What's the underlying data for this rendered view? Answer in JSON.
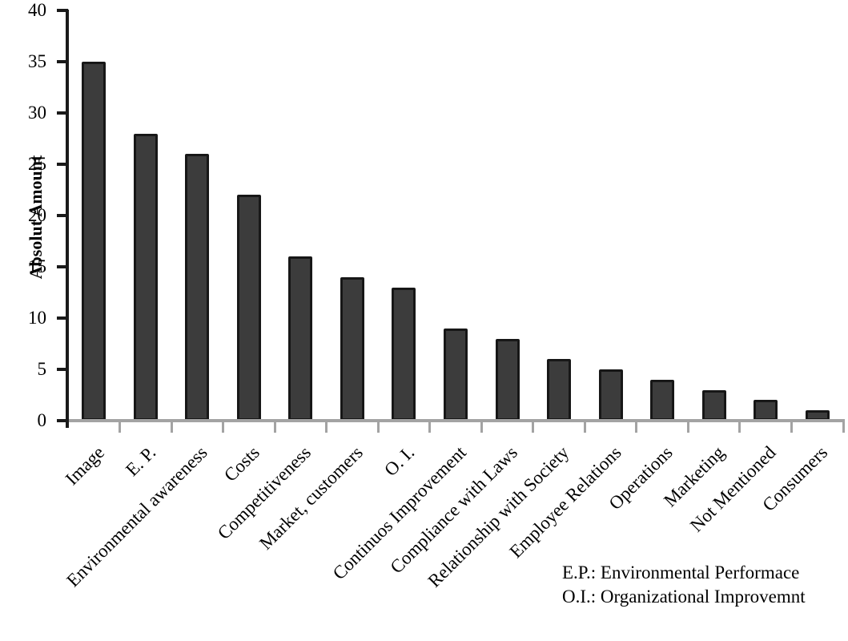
{
  "chart_data": {
    "type": "bar",
    "title": "",
    "xlabel": "",
    "ylabel": "Absolut Amount",
    "categories": [
      "Image",
      "E. P.",
      "Environmental awareness",
      "Costs",
      "Competitiveness",
      "Market, customers",
      "O. I.",
      "Continuos Improvement",
      "Compliance with Laws",
      "Relationship with Society",
      "Employee Relations",
      "Operations",
      "Marketing",
      "Not Mentioned",
      "Consumers"
    ],
    "values": [
      35,
      28,
      26,
      22,
      16,
      14,
      13,
      9,
      8,
      6,
      5,
      4,
      3,
      2,
      1
    ],
    "ylim": [
      0,
      40
    ],
    "yticks": [
      0,
      5,
      10,
      15,
      20,
      25,
      30,
      35,
      40
    ],
    "grid": false,
    "legend_position": "none",
    "bar_color": "#3c3c3c",
    "bar_border_color": "#171717",
    "axis_color": "#1a1a1a",
    "baseline_color": "#a3a3a3"
  },
  "footnote": {
    "line1": "E.P.: Environmental Performace",
    "line2": "O.I.: Organizational Improvemnt"
  }
}
